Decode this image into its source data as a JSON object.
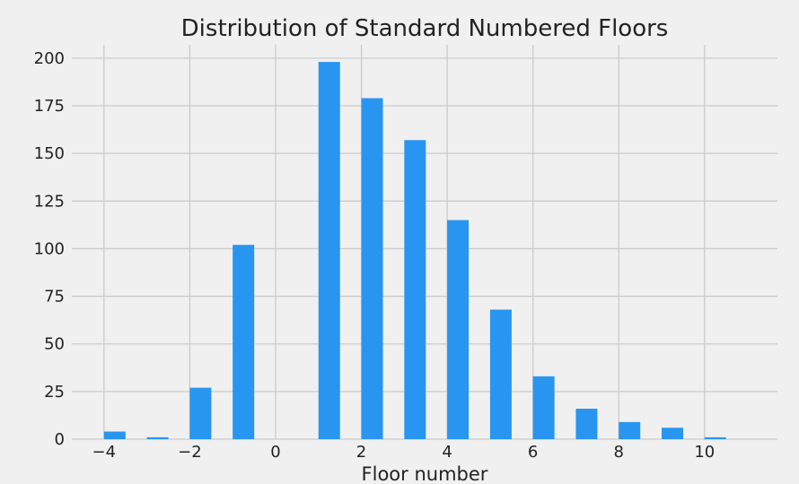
{
  "chart_data": {
    "type": "bar",
    "title": "Distribution of Standard Numbered Floors",
    "xlabel": "Floor number",
    "ylabel": "",
    "x": [
      -4,
      -3,
      -2,
      -1,
      0,
      1,
      2,
      3,
      4,
      5,
      6,
      7,
      8,
      9,
      10
    ],
    "values": [
      4,
      1,
      27,
      102,
      0,
      198,
      179,
      157,
      115,
      68,
      33,
      16,
      9,
      6,
      1
    ],
    "xlim": [
      -4.75,
      11.7
    ],
    "ylim": [
      0,
      207
    ],
    "xticks": [
      -4,
      -2,
      0,
      2,
      4,
      6,
      8,
      10
    ],
    "xtick_labels": [
      "−4",
      "−2",
      "0",
      "2",
      "4",
      "6",
      "8",
      "10"
    ],
    "yticks": [
      0,
      25,
      50,
      75,
      100,
      125,
      150,
      175,
      200
    ],
    "ytick_labels": [
      "0",
      "25",
      "50",
      "75",
      "100",
      "125",
      "150",
      "175",
      "200"
    ],
    "grid": true,
    "bar_color": "#2896f0",
    "background": "#f0f0f0",
    "grid_color": "#cbcbcb"
  }
}
